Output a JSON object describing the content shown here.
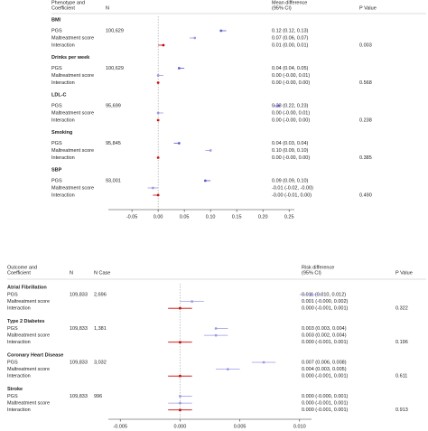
{
  "chart_data": [
    {
      "type": "forest",
      "header": {
        "label": [
          "Phenotype and",
          "Coefficient"
        ],
        "n": "N",
        "estimate": [
          "Mean difference",
          "(95% CI)"
        ],
        "p": "P Value"
      },
      "marker_colors": [
        "#5a5ad0",
        "#9a9ae6",
        "#cc0000"
      ],
      "xlim": [
        -0.095,
        0.26
      ],
      "xticks": [
        -0.05,
        {
          "value": 0,
          "label": "0.00"
        },
        0.05,
        {
          "value": 0.1,
          "label": "0.10"
        },
        0.15,
        {
          "value": 0.2,
          "label": "0.20"
        },
        0.25
      ],
      "groups": [
        {
          "name": "BMI",
          "rows": [
            {
              "name": "PGS",
              "n": "100,629",
              "value": 0.12,
              "ci": [
                0.12,
                0.13
              ],
              "value_label": "0.12 (0.12, 0.13)"
            },
            {
              "name": "Maltreatment score",
              "value": 0.07,
              "ci": [
                0.06,
                0.07
              ],
              "value_label": "0.07 (0.06, 0.07)"
            },
            {
              "name": "Interaction",
              "value": 0.01,
              "ci": [
                0.0,
                0.01
              ],
              "value_label": "0.01 (0.00, 0.01)",
              "p": "0.003"
            }
          ]
        },
        {
          "name": "Drinks per week",
          "rows": [
            {
              "name": "PGS",
              "n": "100,629",
              "value": 0.04,
              "ci": [
                0.04,
                0.05
              ],
              "value_label": "0.04 (0.04, 0.05)"
            },
            {
              "name": "Maltreatment score",
              "value": 0.0,
              "ci": [
                -0.0,
                0.01
              ],
              "value_label": "0.00 (-0.00, 0.01)"
            },
            {
              "name": "Interaction",
              "value": 0.0,
              "ci": [
                -0.0,
                0.0
              ],
              "value_label": "0.00 (-0.00, 0.00)",
              "p": "0.568"
            }
          ]
        },
        {
          "name": "LDL-C",
          "rows": [
            {
              "name": "PGS",
              "n": "95,699",
              "value": 0.23,
              "ci": [
                0.22,
                0.23
              ],
              "value_label": "0.23 (0.22, 0.23)"
            },
            {
              "name": "Maltreatment score",
              "value": 0.0,
              "ci": [
                -0.0,
                0.01
              ],
              "value_label": "0.00 (-0.00, 0.01)"
            },
            {
              "name": "Interaction",
              "value": 0.0,
              "ci": [
                -0.0,
                0.0
              ],
              "value_label": "0.00 (-0.00, 0.00)",
              "p": "0.238"
            }
          ]
        },
        {
          "name": "Smoking",
          "rows": [
            {
              "name": "PGS",
              "n": "95,845",
              "value": 0.04,
              "ci": [
                0.03,
                0.04
              ],
              "value_label": "0.04 (0.03, 0.04)"
            },
            {
              "name": "Maltreatment score",
              "value": 0.1,
              "ci": [
                0.09,
                0.1
              ],
              "value_label": "0.10 (0.09, 0.10)"
            },
            {
              "name": "Interaction",
              "value": 0.0,
              "ci": [
                -0.0,
                0.0
              ],
              "value_label": "0.00 (-0.00, 0.00)",
              "p": "0.385"
            }
          ]
        },
        {
          "name": "SBP",
          "rows": [
            {
              "name": "PGS",
              "n": "93,001",
              "value": 0.09,
              "ci": [
                0.09,
                0.1
              ],
              "value_label": "0.09 (0.09, 0.10)"
            },
            {
              "name": "Maltreatment score",
              "value": -0.01,
              "ci": [
                -0.02,
                -0.0
              ],
              "value_label": "-0.01 (-0.02, -0.00)"
            },
            {
              "name": "Interaction",
              "value": -0.0,
              "ci": [
                -0.01,
                0.0
              ],
              "value_label": "-0.00 (-0.01, 0.00)",
              "p": "0.490"
            }
          ]
        }
      ]
    },
    {
      "type": "forest",
      "header": {
        "label": [
          "Outcome and",
          "Coefficient"
        ],
        "n": "N",
        "n_case": "N Case",
        "estimate": [
          "Risk difference",
          "(95% CI)"
        ],
        "p": "P Value"
      },
      "marker_colors": [
        "#9a9ae6",
        "#9a9ae6",
        "#cc0000"
      ],
      "xlim": [
        -0.006,
        0.011
      ],
      "xticks": [
        -0.005,
        {
          "value": 0,
          "label": "0.000"
        },
        0.005,
        {
          "value": 0.01,
          "label": "0.010"
        }
      ],
      "groups": [
        {
          "name": "Atrial Fibrillation",
          "rows": [
            {
              "name": "PGS",
              "n": "109,833",
              "n_case": "2,696",
              "value": 0.011,
              "ci": [
                0.01,
                0.012
              ],
              "value_label": "0.011 (0.010, 0.012)"
            },
            {
              "name": "Maltreatment score",
              "value": 0.001,
              "ci": [
                -0.0,
                0.002
              ],
              "value_label": "0.001 (-0.000, 0.002)"
            },
            {
              "name": "Interaction",
              "value": 0.0,
              "ci": [
                -0.001,
                0.001
              ],
              "value_label": "0.000 (-0.001, 0.001)",
              "p": "0.322"
            }
          ]
        },
        {
          "name": "Type 2 Diabetes",
          "rows": [
            {
              "name": "PGS",
              "n": "109,833",
              "n_case": "1,381",
              "value": 0.003,
              "ci": [
                0.003,
                0.004
              ],
              "value_label": "0.003 (0.003, 0.004)"
            },
            {
              "name": "Maltreatment score",
              "value": 0.003,
              "ci": [
                0.002,
                0.004
              ],
              "value_label": "0.003 (0.002, 0.004)"
            },
            {
              "name": "Interaction",
              "value": 0.0,
              "ci": [
                -0.001,
                0.001
              ],
              "value_label": "0.000 (-0.001, 0.001)",
              "p": "0.196"
            }
          ]
        },
        {
          "name": "Coronary Heart Disease",
          "rows": [
            {
              "name": "PGS",
              "n": "109,833",
              "n_case": "3,032",
              "value": 0.007,
              "ci": [
                0.006,
                0.008
              ],
              "value_label": "0.007 (0.006, 0.008)"
            },
            {
              "name": "Maltreatment score",
              "value": 0.004,
              "ci": [
                0.003,
                0.005
              ],
              "value_label": "0.004 (0.003, 0.005)"
            },
            {
              "name": "Interaction",
              "value": 0.0,
              "ci": [
                -0.001,
                0.001
              ],
              "value_label": "0.000 (-0.001, 0.001)",
              "p": "0.611"
            }
          ]
        },
        {
          "name": "Stroke",
          "rows": [
            {
              "name": "PGS",
              "n": "109,833",
              "n_case": "996",
              "value": 0.0,
              "ci": [
                -0.0,
                0.001
              ],
              "value_label": "0.000 (-0.000, 0.001)"
            },
            {
              "name": "Maltreatment score",
              "value": 0.0,
              "ci": [
                -0.001,
                0.001
              ],
              "value_label": "0.000 (-0.001, 0.001)"
            },
            {
              "name": "Interaction",
              "value": 0.0,
              "ci": [
                -0.001,
                0.001
              ],
              "value_label": "0.000 (-0.001, 0.001)",
              "p": "0.913"
            }
          ]
        }
      ]
    }
  ]
}
